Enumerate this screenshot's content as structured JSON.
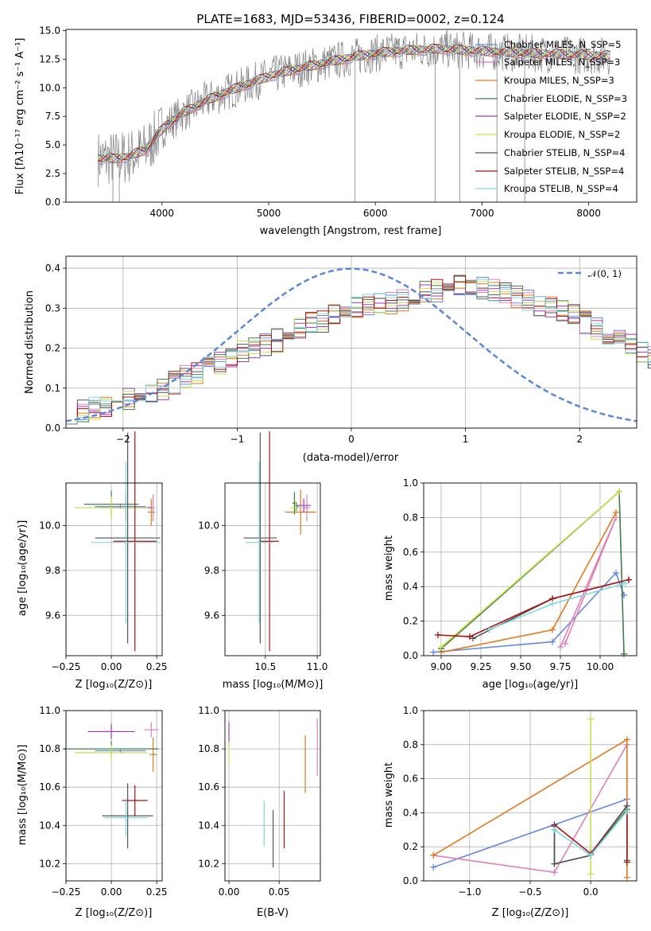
{
  "colors": {
    "chabrier_miles": "#6688dd",
    "salpeter_miles": "#e080b8",
    "kroupa_miles": "#e07a20",
    "chabrier_elodie": "#3f7f4a",
    "salpeter_elodie": "#a836b8",
    "kroupa_elodie": "#c8e04a",
    "chabrier_stelib": "#555555",
    "salpeter_stelib": "#aa1111",
    "kroupa_stelib": "#80d8e0",
    "data_grey": "#808080",
    "normal_curve": "#5b87d6"
  },
  "chart_data": [
    {
      "id": "spectrum",
      "type": "line",
      "title": "PLATE=1683, MJD=53436, FIBERID=0002, z=0.124",
      "xlabel": "wavelength [Angstrom, rest frame]",
      "ylabel": "Flux [fλ10⁻¹⁷ erg cm⁻² s⁻¹ A⁻¹]",
      "xlim": [
        3100,
        8450
      ],
      "ylim": [
        0,
        15.1
      ],
      "xticks": [
        "4000",
        "5000",
        "6000",
        "7000",
        "8000"
      ],
      "yticks": [
        "0.0",
        "2.5",
        "5.0",
        "7.5",
        "10.0",
        "12.5",
        "15.0"
      ],
      "legend": [
        "Chabrier MILES, N_SSP=5",
        "Salpeter MILES, N_SSP=3",
        "Kroupa MILES, N_SSP=3",
        "Chabrier ELODIE, N_SSP=3",
        "Salpeter ELODIE, N_SSP=2",
        "Kroupa ELODIE, N_SSP=2",
        "Chabrier STELIB, N_SSP=4",
        "Salpeter STELIB, N_SSP=4",
        "Kroupa STELIB, N_SSP=4"
      ],
      "continuum": {
        "x": [
          3400,
          3550,
          3700,
          3850,
          3950,
          4050,
          4200,
          4400,
          4600,
          4800,
          5000,
          5200,
          5400,
          5600,
          5800,
          6000,
          6200,
          6400,
          6600,
          6800,
          7000,
          7200,
          7500,
          7800,
          8100,
          8200
        ],
        "y": [
          3.8,
          3.8,
          4.0,
          4.6,
          5.8,
          6.8,
          7.8,
          8.8,
          9.6,
          10.3,
          11.0,
          11.5,
          11.9,
          12.3,
          12.7,
          13.0,
          13.2,
          13.3,
          13.4,
          13.3,
          13.2,
          13.1,
          13.0,
          12.9,
          12.8,
          12.8
        ]
      }
    },
    {
      "id": "residuals",
      "type": "bar",
      "xlabel": "(data-model)/error",
      "ylabel": "Normed distribution",
      "xlim": [
        -2.5,
        2.5
      ],
      "ylim": [
        0,
        0.43
      ],
      "xticks": [
        "−2",
        "−1",
        "0",
        "1",
        "2"
      ],
      "yticks": [
        "0.0",
        "0.1",
        "0.2",
        "0.3",
        "0.4"
      ],
      "legend": "𝒩(0, 1)",
      "bin_width": 0.1,
      "bin_start": -2.5,
      "profile": [
        0.04,
        0.045,
        0.05,
        0.055,
        0.06,
        0.07,
        0.075,
        0.085,
        0.1,
        0.115,
        0.13,
        0.14,
        0.15,
        0.165,
        0.18,
        0.19,
        0.2,
        0.21,
        0.22,
        0.235,
        0.25,
        0.26,
        0.27,
        0.28,
        0.29,
        0.3,
        0.305,
        0.31,
        0.315,
        0.32,
        0.33,
        0.34,
        0.345,
        0.35,
        0.355,
        0.355,
        0.35,
        0.345,
        0.34,
        0.33,
        0.32,
        0.31,
        0.3,
        0.29,
        0.28,
        0.265,
        0.25,
        0.235,
        0.22,
        0.21,
        0.19,
        0.175,
        0.16,
        0.145,
        0.13,
        0.115,
        0.1,
        0.09,
        0.08,
        0.07,
        0.06,
        0.055,
        0.05,
        0.045,
        0.04,
        0.04,
        0.035,
        0.035,
        0.03,
        0.03,
        0.03,
        0.03,
        0.03,
        0.03,
        0.03,
        0.03,
        0.03,
        0.03,
        0.03,
        0.03
      ]
    },
    {
      "id": "age_vs_Z",
      "type": "scatter",
      "xlabel": "Z [log₁₀(Z/Z⊙)]",
      "ylabel": "age  [log₁₀(age/yr)]",
      "xlim": [
        -0.25,
        0.28
      ],
      "ylim": [
        9.42,
        10.19
      ],
      "xticks": [
        "−0.25",
        "0.00",
        "0.25"
      ],
      "yticks": [
        "9.6",
        "9.8",
        "10.0"
      ],
      "points": [
        {
          "m": "chabrier_miles",
          "x": 0.05,
          "xerr": 0.14,
          "y": 10.085,
          "yerr": 0.01
        },
        {
          "m": "salpeter_miles",
          "x": 0.23,
          "xerr": 0.01,
          "y": 10.08,
          "yerr": 0.06
        },
        {
          "m": "kroupa_miles",
          "x": 0.22,
          "xerr": 0.02,
          "y": 10.06,
          "yerr": 0.06
        },
        {
          "m": "chabrier_elodie",
          "x": 0.0,
          "xerr": 0.15,
          "y": 10.095,
          "yerr": 0.06
        },
        {
          "m": "salpeter_elodie",
          "x": 0.08,
          "xerr": 0.14,
          "y": 10.08,
          "yerr": 0.06
        },
        {
          "m": "kroupa_elodie",
          "x": 0.0,
          "xerr": 0.2,
          "y": 10.08,
          "yerr": 0.05
        },
        {
          "m": "chabrier_stelib",
          "x": 0.09,
          "xerr": 0.18,
          "y": 9.945,
          "yerr": 0.47
        },
        {
          "m": "salpeter_stelib",
          "x": 0.13,
          "xerr": 0.12,
          "y": 9.93,
          "yerr": 0.49
        },
        {
          "m": "kroupa_stelib",
          "x": 0.08,
          "xerr": 0.19,
          "y": 9.925,
          "yerr": 0.36
        }
      ]
    },
    {
      "id": "age_vs_mass",
      "type": "scatter",
      "xlabel": "mass [log₁₀(M/M⊙)]",
      "xlim": [
        10.11,
        11.03
      ],
      "ylim": [
        9.42,
        10.19
      ],
      "xticks": [
        "10.5",
        "11.0"
      ],
      "yticks": [
        "9.6",
        "9.8",
        "10.0"
      ],
      "points": [
        {
          "m": "chabrier_miles",
          "x": 10.8,
          "xerr": 0.02,
          "y": 10.085,
          "yerr": 0.02
        },
        {
          "m": "salpeter_miles",
          "x": 10.9,
          "xerr": 0.03,
          "y": 10.08,
          "yerr": 0.06
        },
        {
          "m": "kroupa_miles",
          "x": 10.84,
          "xerr": 0.15,
          "y": 10.06,
          "yerr": 0.1
        },
        {
          "m": "chabrier_elodie",
          "x": 10.78,
          "xerr": 0.02,
          "y": 10.1,
          "yerr": 0.05
        },
        {
          "m": "salpeter_elodie",
          "x": 10.87,
          "xerr": 0.07,
          "y": 10.09,
          "yerr": 0.03
        },
        {
          "m": "kroupa_elodie",
          "x": 10.79,
          "xerr": 0.05,
          "y": 10.08,
          "yerr": 0.03
        },
        {
          "m": "chabrier_stelib",
          "x": 10.45,
          "xerr": 0.16,
          "y": 9.945,
          "yerr": 0.47
        },
        {
          "m": "salpeter_stelib",
          "x": 10.54,
          "xerr": 0.09,
          "y": 9.93,
          "yerr": 0.49
        },
        {
          "m": "kroupa_stelib",
          "x": 10.44,
          "xerr": 0.13,
          "y": 9.925,
          "yerr": 0.36
        }
      ]
    },
    {
      "id": "weight_vs_age",
      "type": "line",
      "xlabel": "age  [log₁₀(age/yr)]",
      "ylabel": "mass weight",
      "xlim": [
        8.89,
        10.23
      ],
      "ylim": [
        0,
        1.0
      ],
      "grid": true,
      "xticks": [
        "9.00",
        "9.25",
        "9.50",
        "9.75",
        "10.00"
      ],
      "yticks": [
        "0.0",
        "0.2",
        "0.4",
        "0.6",
        "0.8",
        "1.0"
      ],
      "series": [
        {
          "m": "chabrier_miles",
          "x": [
            8.95,
            9.7,
            10.1,
            10.15
          ],
          "y": [
            0.02,
            0.08,
            0.48,
            0.35
          ]
        },
        {
          "m": "salpeter_miles",
          "x": [
            9.78,
            10.1,
            9.75
          ],
          "y": [
            0.07,
            0.8,
            0.05
          ]
        },
        {
          "m": "kroupa_miles",
          "x": [
            9.0,
            9.7,
            10.1
          ],
          "y": [
            0.02,
            0.15,
            0.83
          ]
        },
        {
          "m": "chabrier_elodie",
          "x": [
            9.0,
            10.12,
            10.15
          ],
          "y": [
            0.04,
            0.95,
            0.01
          ]
        },
        {
          "m": "kroupa_elodie",
          "x": [
            9.0,
            10.12
          ],
          "y": [
            0.05,
            0.95
          ]
        },
        {
          "m": "chabrier_stelib",
          "x": [
            9.2,
            9.7,
            10.18
          ],
          "y": [
            0.1,
            0.33,
            0.44
          ]
        },
        {
          "m": "salpeter_stelib",
          "x": [
            8.98,
            9.18,
            9.7,
            10.18
          ],
          "y": [
            0.12,
            0.11,
            0.33,
            0.44
          ]
        },
        {
          "m": "kroupa_stelib",
          "x": [
            9.3,
            9.7,
            10.16
          ],
          "y": [
            0.15,
            0.3,
            0.42
          ]
        }
      ]
    },
    {
      "id": "mass_vs_Z",
      "type": "scatter",
      "xlabel": "Z [log₁₀(Z/Z⊙)]",
      "ylabel": "mass [log₁₀(M/M⊙)]",
      "xlim": [
        -0.25,
        0.28
      ],
      "ylim": [
        10.11,
        11.0
      ],
      "xticks": [
        "−0.25",
        "0.00",
        "0.25"
      ],
      "yticks": [
        "10.2",
        "10.4",
        "10.6",
        "10.8",
        "11.0"
      ],
      "points": [
        {
          "m": "chabrier_miles",
          "x": 0.05,
          "xerr": 0.14,
          "y": 10.79,
          "yerr": 0.01
        },
        {
          "m": "salpeter_miles",
          "x": 0.22,
          "xerr": 0.04,
          "y": 10.9,
          "yerr": 0.04
        },
        {
          "m": "kroupa_miles",
          "x": 0.23,
          "xerr": 0.02,
          "y": 10.77,
          "yerr": 0.09
        },
        {
          "m": "chabrier_elodie",
          "x": 0.0,
          "xerr": 0.26,
          "y": 10.8,
          "yerr": 0.04
        },
        {
          "m": "salpeter_elodie",
          "x": 0.0,
          "xerr": 0.13,
          "y": 10.89,
          "yerr": 0.04
        },
        {
          "m": "kroupa_elodie",
          "x": 0.0,
          "xerr": 0.2,
          "y": 10.78,
          "yerr": 0.04
        },
        {
          "m": "chabrier_stelib",
          "x": 0.09,
          "xerr": 0.14,
          "y": 10.45,
          "yerr": 0.17
        },
        {
          "m": "salpeter_stelib",
          "x": 0.13,
          "xerr": 0.07,
          "y": 10.53,
          "yerr": 0.08
        },
        {
          "m": "kroupa_stelib",
          "x": 0.08,
          "xerr": 0.12,
          "y": 10.44,
          "yerr": 0.1
        }
      ]
    },
    {
      "id": "mass_vs_ebv",
      "type": "scatter",
      "xlabel": "E(B-V)",
      "xlim": [
        -0.004,
        0.091
      ],
      "ylim": [
        10.11,
        11.0
      ],
      "xticks": [
        "0.00",
        "0.05"
      ],
      "yticks": [
        "10.2",
        "10.4",
        "10.6",
        "10.8",
        "11.0"
      ],
      "points": [
        {
          "m": "salpeter_miles",
          "x": 0.088,
          "xerr": 0.0,
          "y": 10.81,
          "yerr": 0.15
        },
        {
          "m": "kroupa_miles",
          "x": 0.076,
          "xerr": 0.0,
          "y": 10.72,
          "yerr": 0.15
        },
        {
          "m": "salpeter_elodie",
          "x": 0.0,
          "xerr": 0.0,
          "y": 10.88,
          "yerr": 0.06
        },
        {
          "m": "kroupa_elodie",
          "x": 0.0,
          "xerr": 0.0,
          "y": 10.78,
          "yerr": 0.06
        },
        {
          "m": "chabrier_stelib",
          "x": 0.044,
          "xerr": 0.0,
          "y": 10.33,
          "yerr": 0.15
        },
        {
          "m": "salpeter_stelib",
          "x": 0.055,
          "xerr": 0.0,
          "y": 10.43,
          "yerr": 0.15
        },
        {
          "m": "kroupa_stelib",
          "x": 0.035,
          "xerr": 0.0,
          "y": 10.41,
          "yerr": 0.12
        }
      ]
    },
    {
      "id": "weight_vs_Z",
      "type": "line",
      "xlabel": "Z [log₁₀(Z/Z⊙)]",
      "ylabel": "mass weight",
      "xlim": [
        -1.38,
        0.38
      ],
      "ylim": [
        0,
        1.0
      ],
      "grid": true,
      "xticks": [
        "−1.0",
        "−0.5",
        "0.0"
      ],
      "yticks": [
        "0.0",
        "0.2",
        "0.4",
        "0.6",
        "0.8",
        "1.0"
      ],
      "series": [
        {
          "m": "chabrier_miles",
          "x": [
            -1.3,
            0.3
          ],
          "y": [
            0.08,
            0.48
          ]
        },
        {
          "m": "salpeter_miles",
          "x": [
            0.3,
            -0.3,
            -1.3
          ],
          "y": [
            0.8,
            0.05,
            0.15
          ]
        },
        {
          "m": "kroupa_miles",
          "x": [
            -1.3,
            0.3,
            0.3
          ],
          "y": [
            0.15,
            0.83,
            0.02
          ]
        },
        {
          "m": "kroupa_elodie",
          "x": [
            0.0,
            0.0
          ],
          "y": [
            0.95,
            0.04
          ]
        },
        {
          "m": "chabrier_elodie",
          "x": [
            -0.3,
            -0.3,
            0.0,
            0.3,
            0.3
          ],
          "y": [
            0.3,
            0.1,
            0.15,
            0.42,
            0.12
          ]
        },
        {
          "m": "salpeter_stelib",
          "x": [
            -0.3,
            0.0,
            0.3,
            0.3
          ],
          "y": [
            0.33,
            0.16,
            0.44,
            0.11
          ]
        },
        {
          "m": "chabrier_stelib",
          "x": [
            -0.3,
            -0.3,
            0.0,
            0.3
          ],
          "y": [
            0.32,
            0.1,
            0.15,
            0.44
          ]
        },
        {
          "m": "kroupa_stelib",
          "x": [
            -0.3,
            0.0,
            0.3
          ],
          "y": [
            0.3,
            0.15,
            0.41
          ]
        }
      ]
    }
  ]
}
